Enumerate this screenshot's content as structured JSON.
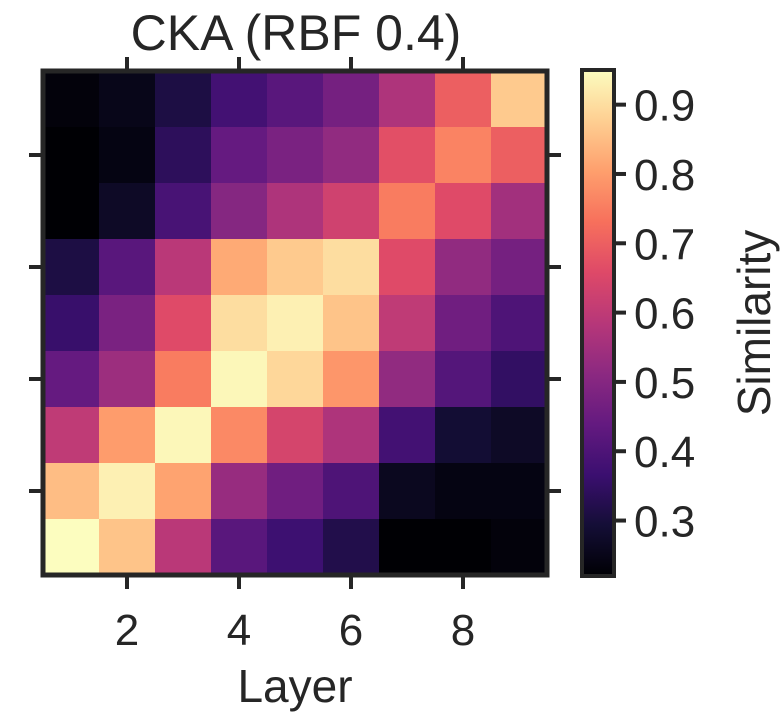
{
  "chart_data": {
    "type": "heatmap",
    "title": "CKA (RBF 0.4)",
    "xlabel": "Layer",
    "ylabel": "",
    "colorbar_label": "Similarity",
    "colormap": "magma",
    "x": [
      1,
      2,
      3,
      4,
      5,
      6,
      7,
      8,
      9
    ],
    "y": [
      1,
      2,
      3,
      4,
      5,
      6,
      7,
      8,
      9
    ],
    "y_direction": "bottom-to-top",
    "x_ticks": [
      "2",
      "4",
      "6",
      "8"
    ],
    "x_tick_values": [
      2,
      4,
      6,
      8
    ],
    "y_tick_values": [
      2,
      4,
      6,
      8
    ],
    "y_tick_labels_shown": false,
    "colorbar_ticks": [
      "0.3",
      "0.4",
      "0.5",
      "0.6",
      "0.7",
      "0.8",
      "0.9"
    ],
    "colorbar_tick_values": [
      0.3,
      0.4,
      0.5,
      0.6,
      0.7,
      0.8,
      0.9
    ],
    "vmin": 0.22,
    "vmax": 0.95,
    "rows_top_to_bottom": [
      [
        0.23,
        0.25,
        0.31,
        0.38,
        0.42,
        0.47,
        0.57,
        0.7,
        0.87
      ],
      [
        0.22,
        0.24,
        0.34,
        0.44,
        0.48,
        0.52,
        0.67,
        0.76,
        0.7
      ],
      [
        0.22,
        0.27,
        0.39,
        0.5,
        0.57,
        0.63,
        0.75,
        0.66,
        0.55
      ],
      [
        0.31,
        0.42,
        0.59,
        0.82,
        0.87,
        0.9,
        0.66,
        0.52,
        0.47
      ],
      [
        0.36,
        0.48,
        0.66,
        0.9,
        0.93,
        0.86,
        0.6,
        0.46,
        0.4
      ],
      [
        0.44,
        0.54,
        0.75,
        0.94,
        0.89,
        0.79,
        0.52,
        0.41,
        0.35
      ],
      [
        0.6,
        0.8,
        0.94,
        0.77,
        0.64,
        0.57,
        0.38,
        0.29,
        0.27
      ],
      [
        0.85,
        0.93,
        0.81,
        0.53,
        0.46,
        0.4,
        0.26,
        0.24,
        0.24
      ],
      [
        0.95,
        0.86,
        0.59,
        0.42,
        0.37,
        0.32,
        0.22,
        0.22,
        0.23
      ]
    ],
    "grid": false
  }
}
